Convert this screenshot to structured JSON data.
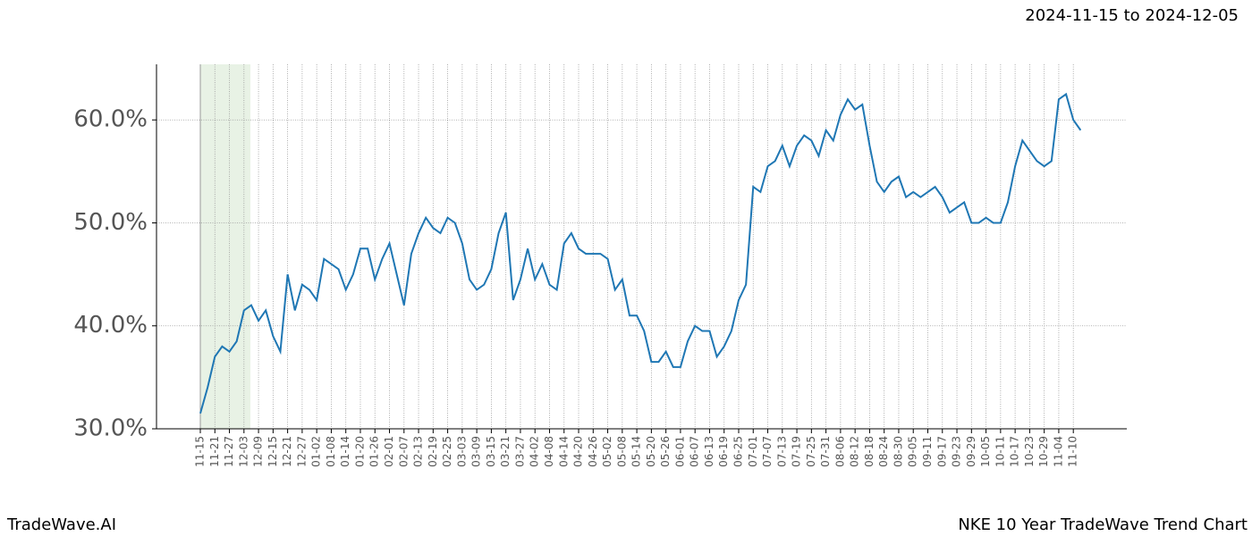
{
  "chart_data": {
    "type": "line",
    "date_range": "2024-11-15 to 2024-12-05",
    "footer_left": "TradeWave.AI",
    "footer_right": "NKE 10 Year TradeWave Trend Chart",
    "categories": [
      "11-15",
      null,
      "11-21",
      null,
      "11-27",
      null,
      "12-03",
      null,
      "12-09",
      null,
      "12-15",
      null,
      "12-21",
      null,
      "12-27",
      null,
      "01-02",
      null,
      "01-08",
      null,
      "01-14",
      null,
      "01-20",
      null,
      "01-26",
      null,
      "02-01",
      null,
      "02-07",
      null,
      "02-13",
      null,
      "02-19",
      null,
      "02-25",
      null,
      "03-03",
      null,
      "03-09",
      null,
      "03-15",
      null,
      "03-21",
      null,
      "03-27",
      null,
      "04-02",
      null,
      "04-08",
      null,
      "04-14",
      null,
      "04-20",
      null,
      "04-26",
      null,
      "05-02",
      null,
      "05-08",
      null,
      "05-14",
      null,
      "05-20",
      null,
      "05-26",
      null,
      "06-01",
      null,
      "06-07",
      null,
      "06-13",
      null,
      "06-19",
      null,
      "06-25",
      null,
      "07-01",
      null,
      "07-07",
      null,
      "07-13",
      null,
      "07-19",
      null,
      "07-25",
      null,
      "07-31",
      null,
      "08-06",
      null,
      "08-12",
      null,
      "08-18",
      null,
      "08-24",
      null,
      "08-30",
      null,
      "09-05",
      null,
      "09-11",
      null,
      "09-17",
      null,
      "09-23",
      null,
      "09-29",
      null,
      "10-05",
      null,
      "10-11",
      null,
      "10-17",
      null,
      "10-23",
      null,
      "10-29",
      null,
      "11-04",
      null,
      "11-10",
      null
    ],
    "series": [
      {
        "color": "#1f77b4",
        "values": [
          31.5,
          34,
          37,
          38,
          37.5,
          38.5,
          41.5,
          42,
          40.5,
          41.5,
          39,
          37.5,
          45,
          41.5,
          44,
          43.5,
          42.5,
          46.5,
          46,
          45.5,
          43.5,
          45,
          47.5,
          47.5,
          44.5,
          46.5,
          48,
          45,
          42,
          47,
          49,
          50.5,
          49.5,
          49,
          50.5,
          50,
          48,
          44.5,
          43.5,
          44,
          45.5,
          49,
          51,
          42.5,
          44.5,
          47.5,
          44.5,
          46,
          44,
          43.5,
          48,
          49,
          47.5,
          47,
          47,
          47,
          46.5,
          43.5,
          44.5,
          41,
          41,
          39.5,
          36.5,
          36.5,
          37.5,
          36,
          36,
          38.5,
          40,
          39.5,
          39.5,
          37,
          38,
          39.5,
          42.5,
          44,
          53.5,
          53,
          55.5,
          56,
          57.5,
          55.5,
          57.5,
          58.5,
          58,
          56.5,
          59,
          58,
          60.5,
          62,
          61,
          61.5,
          57.5,
          54,
          53,
          54,
          54.5,
          52.5,
          53,
          52.5,
          53,
          53.5,
          52.5,
          51,
          51.5,
          52,
          50,
          50,
          50.5,
          50,
          50,
          52,
          55.5,
          58,
          57,
          56,
          55.5,
          56,
          62,
          62.5,
          60,
          59
        ]
      }
    ],
    "ylim": [
      30,
      65.4
    ],
    "yticks": [
      {
        "value": 30,
        "label": "30.0%"
      },
      {
        "value": 40,
        "label": "40.0%"
      },
      {
        "value": 50,
        "label": "50.0%"
      },
      {
        "value": 60,
        "label": "60.0%"
      }
    ],
    "grid": true
  }
}
